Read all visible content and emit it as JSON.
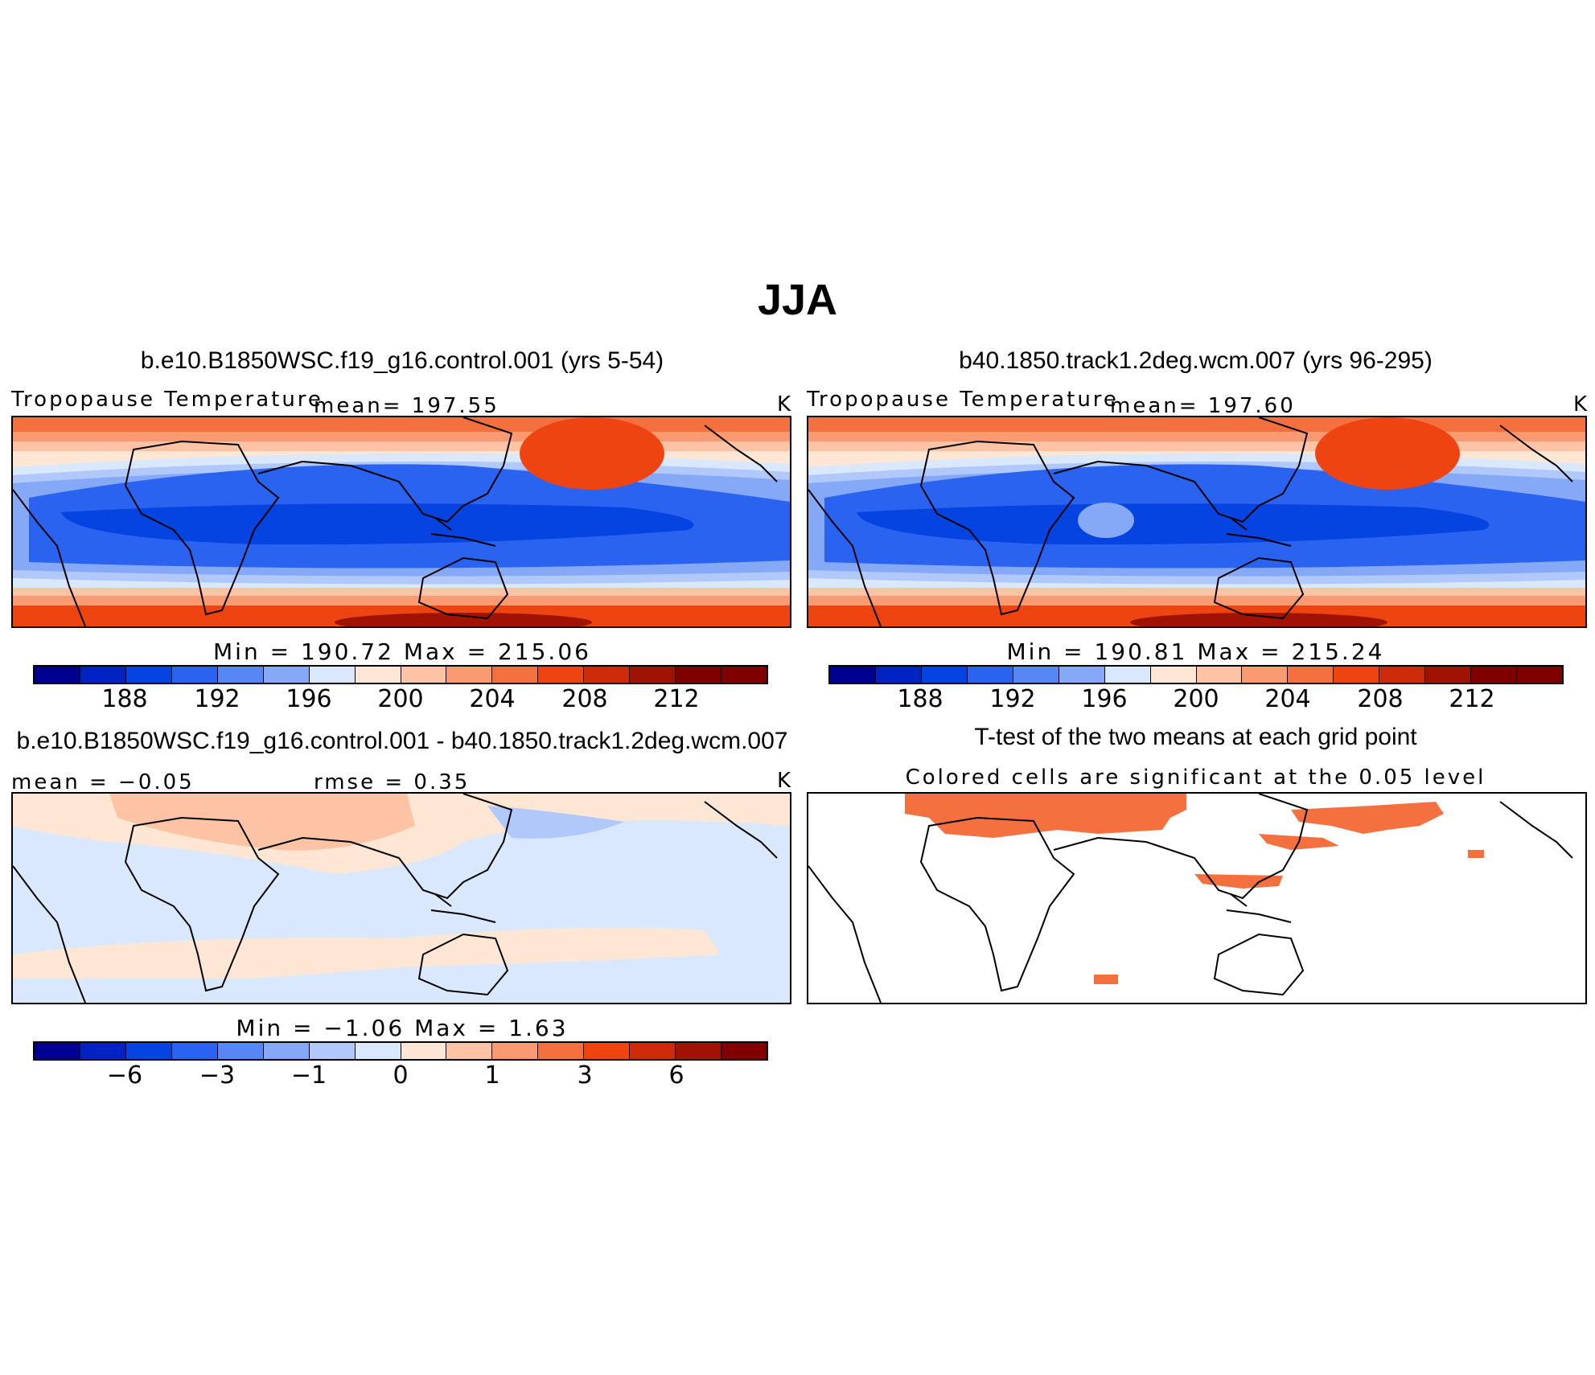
{
  "figure": {
    "title": "JJA"
  },
  "chart_data": [
    {
      "type": "heatmap",
      "panel": "top-left",
      "title": "b.e10.B1850WSC.f19_g16.control.001 (yrs 5-54)",
      "left_label": "Tropopause Temperature",
      "center_label": "mean= 197.55",
      "right_label": "K",
      "stats_label": "Min = 190.72 Max = 215.06",
      "min": 190.72,
      "max": 215.06,
      "mean": 197.55,
      "units": "K",
      "colorbar": {
        "levels": [
          186,
          188,
          190,
          192,
          194,
          196,
          198,
          200,
          202,
          204,
          206,
          208,
          210,
          212
        ],
        "tick_labels": [
          "188",
          "192",
          "196",
          "200",
          "204",
          "208",
          "212"
        ],
        "colors": [
          "#000090",
          "#0022c0",
          "#0544e0",
          "#2a63f0",
          "#5787f5",
          "#86a9f7",
          "#b0c8fa",
          "#d9e8fd",
          "#fde6d4",
          "#fcc3a4",
          "#f99a72",
          "#f4703e",
          "#ed4412",
          "#cc2a09",
          "#a01303",
          "#800000"
        ]
      }
    },
    {
      "type": "heatmap",
      "panel": "top-right",
      "title": "b40.1850.track1.2deg.wcm.007 (yrs 96-295)",
      "left_label": "Tropopause Temperature",
      "center_label": "mean= 197.60",
      "right_label": "K",
      "stats_label": "Min = 190.81 Max = 215.24",
      "min": 190.81,
      "max": 215.24,
      "mean": 197.6,
      "units": "K",
      "colorbar": {
        "levels": [
          186,
          188,
          190,
          192,
          194,
          196,
          198,
          200,
          202,
          204,
          206,
          208,
          210,
          212
        ],
        "tick_labels": [
          "188",
          "192",
          "196",
          "200",
          "204",
          "208",
          "212"
        ],
        "colors": [
          "#000090",
          "#0022c0",
          "#0544e0",
          "#2a63f0",
          "#5787f5",
          "#86a9f7",
          "#b0c8fa",
          "#d9e8fd",
          "#fde6d4",
          "#fcc3a4",
          "#f99a72",
          "#f4703e",
          "#ed4412",
          "#cc2a09",
          "#a01303",
          "#800000"
        ]
      }
    },
    {
      "type": "heatmap",
      "panel": "bottom-left",
      "title": "b.e10.B1850WSC.f19_g16.control.001 - b40.1850.track1.2deg.wcm.007",
      "left_label": "mean = −0.05",
      "center_label": "rmse = 0.35",
      "right_label": "K",
      "stats_label": "Min = −1.06 Max = 1.63",
      "min": -1.06,
      "max": 1.63,
      "mean": -0.05,
      "rmse": 0.35,
      "units": "K",
      "colorbar": {
        "levels": [
          -8,
          -6,
          -4,
          -3,
          -2,
          -1,
          -0.5,
          0,
          0.5,
          1,
          2,
          3,
          4,
          6,
          8
        ],
        "tick_labels": [
          "−6",
          "−3",
          "−1",
          "0",
          "1",
          "3",
          "6"
        ],
        "colors": [
          "#000090",
          "#0022c0",
          "#0544e0",
          "#2a63f0",
          "#5787f5",
          "#86a9f7",
          "#b0c8fa",
          "#d9e8fd",
          "#fde6d4",
          "#fcc3a4",
          "#f99a72",
          "#f4703e",
          "#ed4412",
          "#cc2a09",
          "#a01303",
          "#800000"
        ]
      }
    },
    {
      "type": "heatmap",
      "panel": "bottom-right",
      "title": "T-test of the two means at each grid point",
      "subtitle": "Colored cells are significant at the 0.05 level",
      "significance_level": 0.05,
      "significant_color": "#f4703e"
    }
  ]
}
